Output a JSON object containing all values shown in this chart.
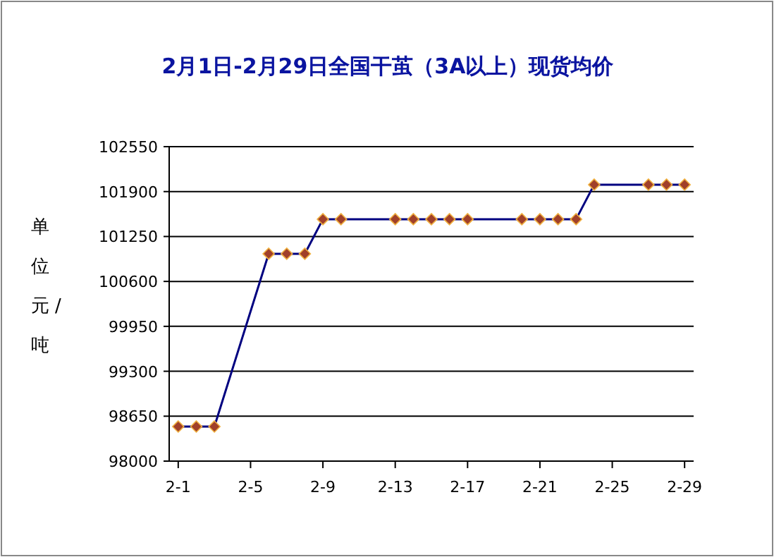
{
  "chart_data": {
    "type": "line",
    "title": "2月1日-2月29日全国干茧（3A以上）现货均价",
    "ylabel": "单位元/吨",
    "categories": [
      "2-1",
      null,
      null,
      null,
      "2-5",
      null,
      null,
      null,
      "2-9",
      null,
      null,
      null,
      "2-13",
      null,
      null,
      null,
      "2-17",
      null,
      null,
      null,
      "2-21",
      null,
      null,
      null,
      "2-25",
      null,
      null,
      null,
      "2-29"
    ],
    "series": [
      {
        "color": "#000080",
        "values": [
          98500,
          98500,
          98500,
          null,
          null,
          101000,
          101000,
          101000,
          101500,
          101500,
          null,
          null,
          101500,
          101500,
          101500,
          101500,
          101500,
          null,
          null,
          101500,
          101500,
          101500,
          101500,
          102000,
          null,
          null,
          102000,
          102000,
          102000
        ]
      }
    ],
    "ylim": [
      98000,
      102550
    ],
    "yticks": [
      98000,
      98650,
      99300,
      99950,
      100600,
      101250,
      101900,
      102550
    ],
    "grid": "y",
    "marker": "diamond",
    "line_style": "solid"
  }
}
